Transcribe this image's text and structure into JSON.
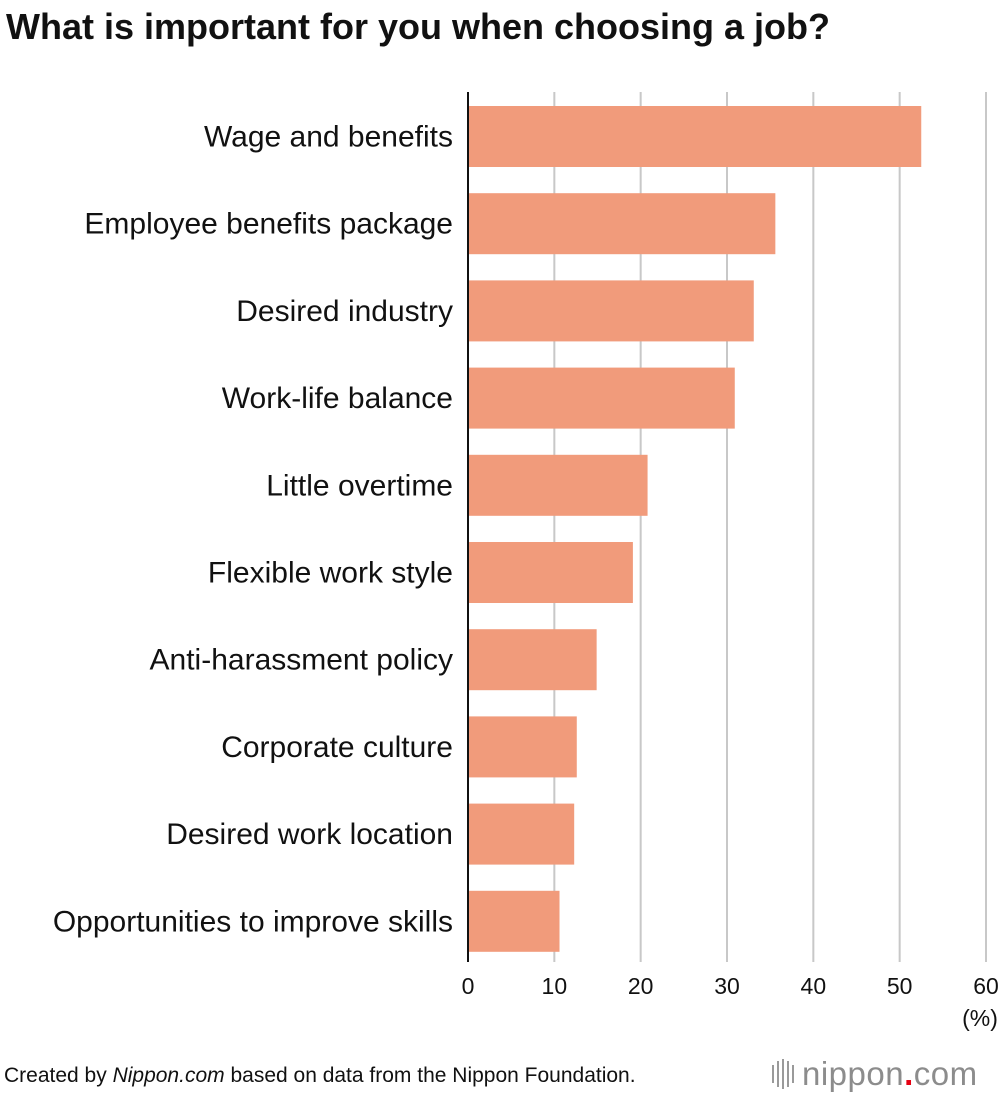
{
  "title": "What is important for you when choosing a job?",
  "chart_data": {
    "type": "bar",
    "orientation": "horizontal",
    "title": "What is important for you when choosing a job?",
    "categories": [
      "Wage and benefits",
      "Employee benefits package",
      "Desired industry",
      "Work-life balance",
      "Little overtime",
      "Flexible work style",
      "Anti-harassment policy",
      "Corporate culture",
      "Desired work location",
      "Opportunities to improve skills"
    ],
    "values": [
      52.5,
      35.6,
      33.1,
      30.9,
      20.8,
      19.1,
      14.9,
      12.6,
      12.3,
      10.6
    ],
    "xlim": [
      0,
      60
    ],
    "xticks": [
      "0",
      "10",
      "20",
      "30",
      "40",
      "50",
      "60"
    ],
    "xunit": "(%)",
    "grid": true,
    "bar_color": "#f19b7b",
    "gridline_color": "#c8c8c8"
  },
  "footer": {
    "prefix": "Created by ",
    "source_name": "Nippon.com",
    "suffix": " based on data from the Nippon Foundation."
  },
  "logo": {
    "text_main": "nippon",
    "text_dot": ".",
    "text_end": "com",
    "accent_color": "#e60012"
  }
}
